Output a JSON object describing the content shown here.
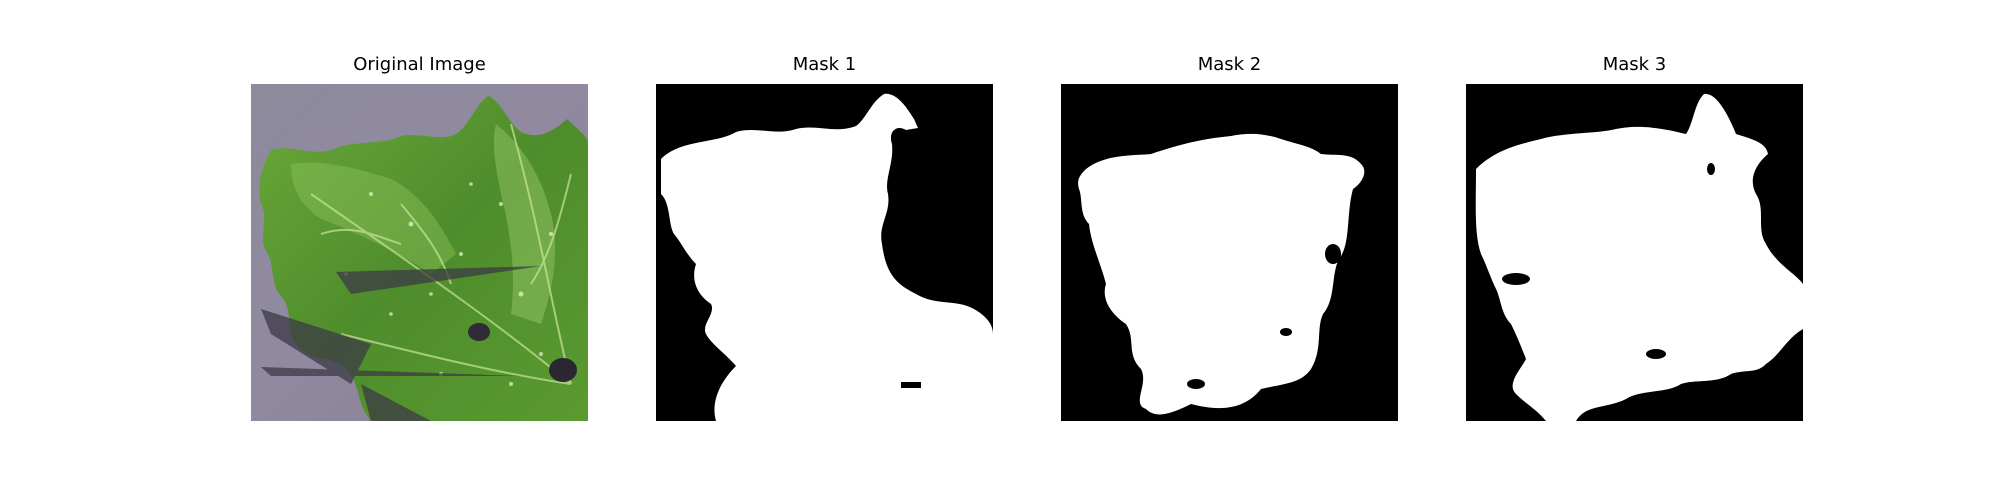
{
  "figure": {
    "panels": [
      {
        "title": "Original Image",
        "kind": "photo",
        "subject": "leaf-photo"
      },
      {
        "title": "Mask 1",
        "kind": "mask"
      },
      {
        "title": "Mask 2",
        "kind": "mask"
      },
      {
        "title": "Mask 3",
        "kind": "mask"
      }
    ]
  },
  "colors": {
    "background": "#ffffff",
    "mask_foreground": "#ffffff",
    "mask_background": "#000000",
    "photo_backdrop": "#8d8599",
    "leaf_dark": "#3f7a24",
    "leaf_mid": "#5f9f32",
    "leaf_light": "#9ccc64"
  }
}
